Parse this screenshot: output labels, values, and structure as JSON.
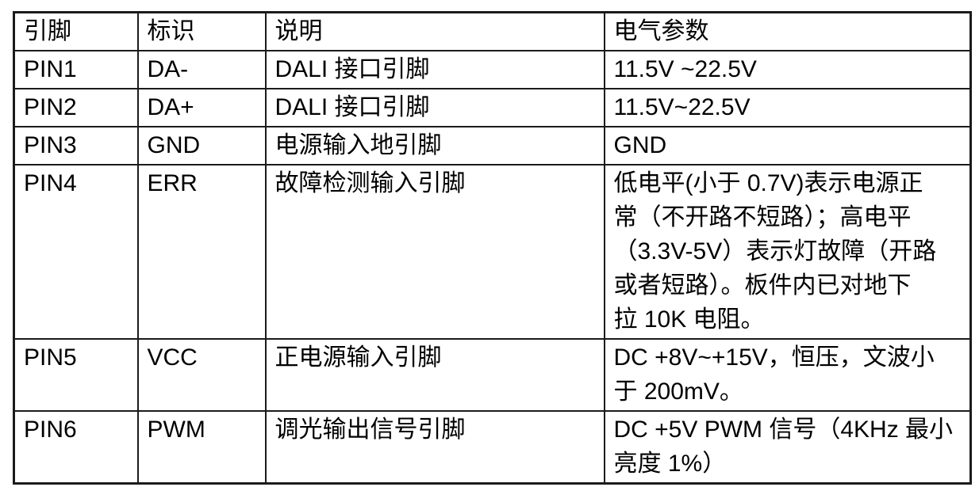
{
  "table": {
    "header": [
      "引脚",
      "标识",
      "说明",
      "电气参数"
    ],
    "rows": [
      [
        "PIN1",
        "DA-",
        "DALI 接口引脚",
        "11.5V ~22.5V"
      ],
      [
        "PIN2",
        "DA+",
        "DALI 接口引脚",
        "11.5V~22.5V"
      ],
      [
        "PIN3",
        "GND",
        "电源输入地引脚",
        "GND"
      ],
      [
        "PIN4",
        "ERR",
        "故障检测输入引脚",
        "低电平(小于 0.7V)表示电源正\n常（不开路不短路）；高电平\n（3.3V-5V）表示灯故障（开路\n或者短路）。板件内已对地下\n拉 10K 电阻。"
      ],
      [
        "PIN5",
        "VCC",
        "正电源输入引脚",
        "DC +8V~+15V，恒压，文波小\n于 200mV。"
      ],
      [
        "PIN6",
        "PWM",
        "调光输出信号引脚",
        "DC +5V PWM 信号（4KHz 最小\n亮度 1%）"
      ]
    ],
    "colors": {
      "border": "#1b1b1b",
      "text": "#000000",
      "background": "#ffffff"
    }
  }
}
